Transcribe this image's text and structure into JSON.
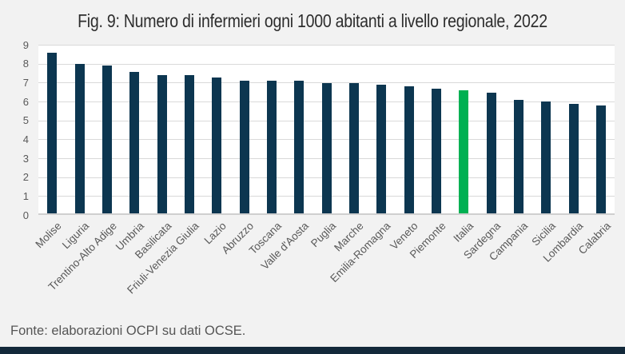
{
  "chart_data": {
    "type": "bar",
    "title": "Fig. 9: Numero di infermieri ogni 1000 abitanti a livello regionale, 2022",
    "categories": [
      "Molise",
      "Liguria",
      "Trentino-Alto Adige",
      "Umbria",
      "Basilicata",
      "Friuli-Venezia Giulia",
      "Lazio",
      "Abruzzo",
      "Toscana",
      "Valle d'Aosta",
      "Puglia",
      "Marche",
      "Emilia-Romagna",
      "Veneto",
      "Piemonte",
      "Italia",
      "Sardegna",
      "Campania",
      "Sicilia",
      "Lombardia",
      "Calabria"
    ],
    "values": [
      8.5,
      7.9,
      7.8,
      7.5,
      7.3,
      7.3,
      7.2,
      7.0,
      7.0,
      7.0,
      6.9,
      6.9,
      6.8,
      6.7,
      6.6,
      6.5,
      6.4,
      6.0,
      5.9,
      5.8,
      5.7
    ],
    "highlight_category": "Italia",
    "xlabel": "",
    "ylabel": "",
    "ylim": [
      0,
      9
    ],
    "yticks": [
      0,
      1,
      2,
      3,
      4,
      5,
      6,
      7,
      8,
      9
    ],
    "grid": true,
    "legend": "none",
    "source": "Fonte: elaborazioni OCPI su dati OCSE.",
    "colors": {
      "bar": "#0c3650",
      "highlight": "#00b052",
      "gridline": "#d9d9d9",
      "axis_line": "#cfcfcf",
      "tick_text": "#595959",
      "title_text": "#2d2d2d",
      "plot_background": "#ffffff",
      "page_background": "#f2f2f2",
      "source_text": "#555555",
      "footer_bar": "#13293a"
    }
  }
}
